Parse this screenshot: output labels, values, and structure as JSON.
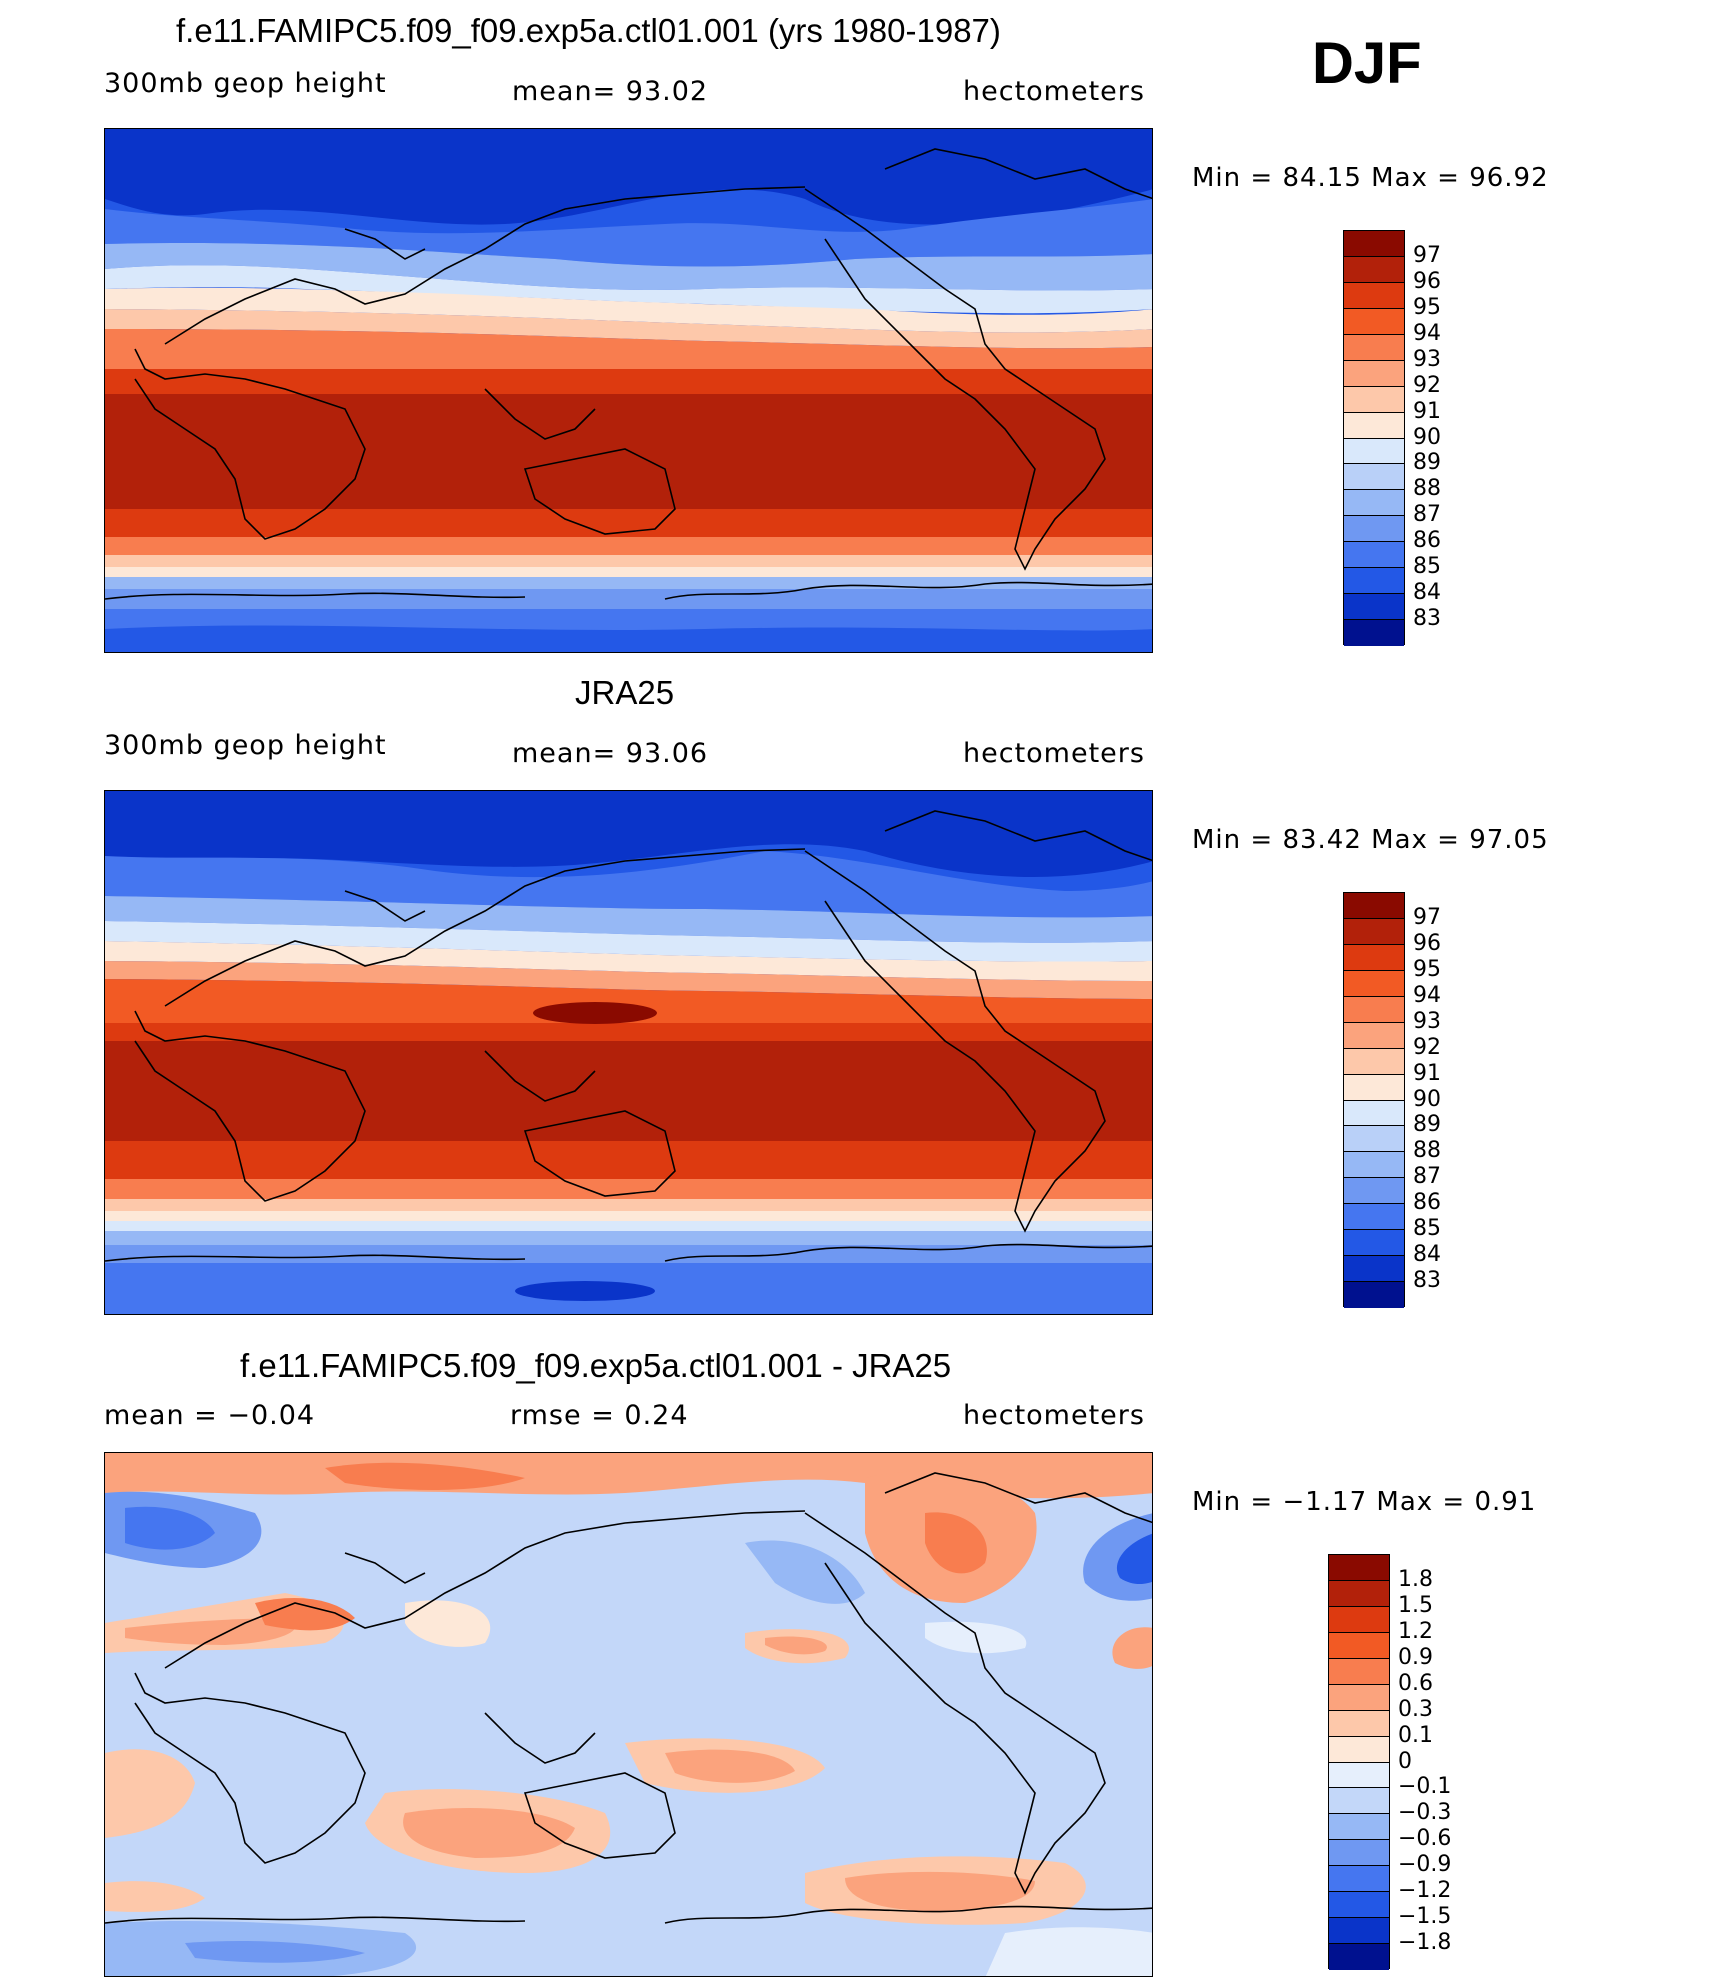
{
  "season": "DJF",
  "panels": [
    {
      "id": "model",
      "title": "f.e11.FAMIPC5.f09_f09.exp5a.ctl01.001 (yrs 1980-1987)",
      "left_label": "300mb  geop  height",
      "center_label": "mean=   93.02",
      "units": "hectometers",
      "minmax": "Min  =    84.15  Max  =    96.92",
      "colorbar": {
        "levels": [
          "97",
          "96",
          "95",
          "94",
          "93",
          "92",
          "91",
          "90",
          "89",
          "88",
          "87",
          "86",
          "85",
          "84",
          "83"
        ],
        "colors": [
          "#8a0a00",
          "#b2210a",
          "#dd3a10",
          "#f25a24",
          "#f87d4f",
          "#fba37d",
          "#fdc8aa",
          "#fde8d8",
          "#d9e8fb",
          "#b9d0f8",
          "#96b8f5",
          "#6f98f2",
          "#4576f0",
          "#2358e6",
          "#0a34c9",
          "#00118f"
        ]
      }
    },
    {
      "id": "obs",
      "title": "JRA25",
      "left_label": "300mb  geop  height",
      "center_label": "mean=   93.06",
      "units": "hectometers",
      "minmax": "Min  =    83.42  Max  =    97.05",
      "colorbar": {
        "levels": [
          "97",
          "96",
          "95",
          "94",
          "93",
          "92",
          "91",
          "90",
          "89",
          "88",
          "87",
          "86",
          "85",
          "84",
          "83"
        ],
        "colors": [
          "#8a0a00",
          "#b2210a",
          "#dd3a10",
          "#f25a24",
          "#f87d4f",
          "#fba37d",
          "#fdc8aa",
          "#fde8d8",
          "#d9e8fb",
          "#b9d0f8",
          "#96b8f5",
          "#6f98f2",
          "#4576f0",
          "#2358e6",
          "#0a34c9",
          "#00118f"
        ]
      }
    },
    {
      "id": "diff",
      "title": "f.e11.FAMIPC5.f09_f09.exp5a.ctl01.001 - JRA25",
      "left_label": "mean  =    −0.04",
      "center_label": "rmse  =     0.24",
      "units": "hectometers",
      "minmax": "Min  =    −1.17  Max  =      0.91",
      "colorbar": {
        "levels": [
          "1.8",
          "1.5",
          "1.2",
          "0.9",
          "0.6",
          "0.3",
          "0.1",
          "0",
          "−0.1",
          "−0.3",
          "−0.6",
          "−0.9",
          "−1.2",
          "−1.5",
          "−1.8"
        ],
        "colors": [
          "#8a0a00",
          "#b2210a",
          "#dd3a10",
          "#f25a24",
          "#f87d4f",
          "#fba37d",
          "#fdc8aa",
          "#fde8d8",
          "#e6effc",
          "#c3d7f9",
          "#96b8f5",
          "#6f98f2",
          "#4576f0",
          "#2358e6",
          "#0a34c9",
          "#00118f"
        ]
      }
    }
  ]
}
